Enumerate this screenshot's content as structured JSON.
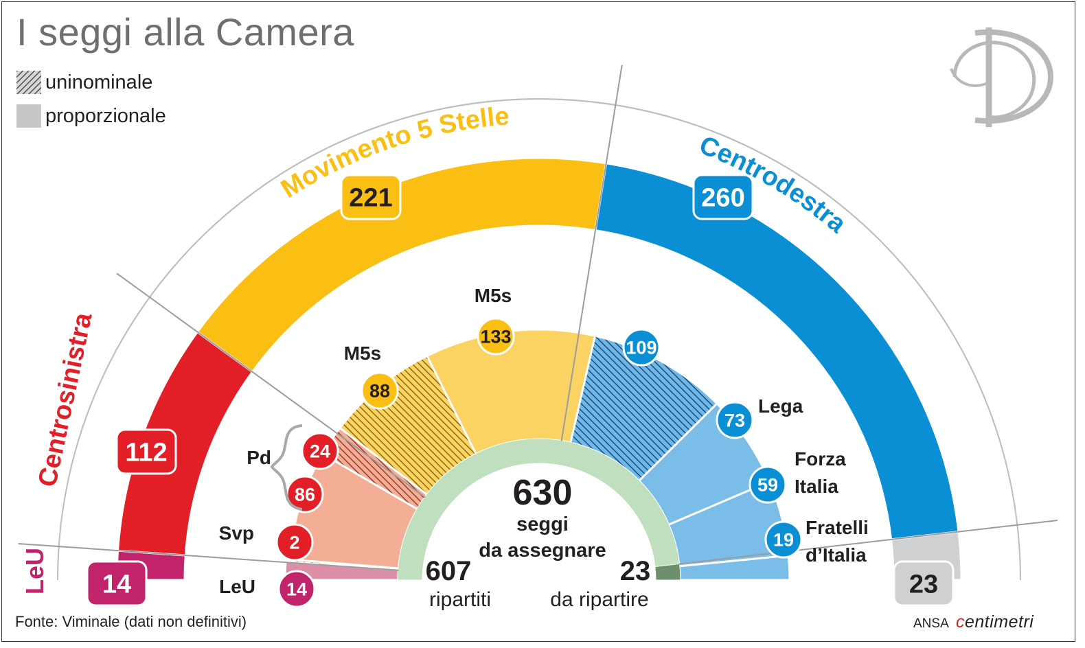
{
  "title": "I seggi alla Camera",
  "legend": [
    {
      "label": "uninominale",
      "pattern": "hatched",
      "color": "#6d6e70"
    },
    {
      "label": "proporzionale",
      "pattern": "solid",
      "color": "#c6c7c8"
    }
  ],
  "source": "Fonte: Viminale (dati non definitivi)",
  "credit": {
    "agency": "ANSA",
    "studio": "centimetri"
  },
  "colors": {
    "red": "#e21f26",
    "yellow": "#fbbf14",
    "blue": "#0a8fd5",
    "leu": "#c1246b",
    "grey": "#cfd0d1",
    "light_yellow": "#fbd363",
    "light_blue": "#79bde8",
    "salmon": "#f4ae95",
    "pink": "#dc8fa6",
    "light_green": "#bfdfbe",
    "dark_green": "#6e8f6c"
  },
  "chart_data": {
    "type": "pie",
    "subtype": "parliament-semicircle",
    "total": {
      "value": "630",
      "label_line1": "seggi",
      "label_line2": "da assegnare"
    },
    "assigned": {
      "value": "607",
      "label": "ripartiti"
    },
    "unassigned": {
      "value": "23",
      "label": "da ripartire"
    },
    "coalitions": [
      {
        "name": "LeU",
        "seats": 14,
        "color": "#c1246b"
      },
      {
        "name": "Centrosinistra",
        "seats": 112,
        "color": "#e21f26"
      },
      {
        "name": "Movimento 5 Stelle",
        "seats": 221,
        "color": "#fbbf14"
      },
      {
        "name": "Centrodestra",
        "seats": 260,
        "color": "#0a8fd5"
      },
      {
        "name": "",
        "seats": 23,
        "color": "#cfd0d1"
      }
    ],
    "parties": [
      {
        "name": "LeU",
        "seats": 14,
        "type": "proporzionale",
        "color": "#dc8fa6",
        "badge": "#c1246b"
      },
      {
        "name": "Svp",
        "seats": 2,
        "type": "uninominale",
        "color": "#f4ae95",
        "badge": "#e21f26"
      },
      {
        "name": "Pd",
        "seats": 86,
        "type": "proporzionale",
        "color": "#f4ae95",
        "badge": "#e21f26"
      },
      {
        "name": "Pd",
        "seats": 24,
        "type": "uninominale",
        "color": "#f4ae95",
        "badge": "#e21f26"
      },
      {
        "name": "M5s",
        "seats": 88,
        "type": "uninominale",
        "color": "#fbd363",
        "badge": "#fbbf14"
      },
      {
        "name": "M5s",
        "seats": 133,
        "type": "proporzionale",
        "color": "#fbd363",
        "badge": "#fbbf14"
      },
      {
        "name": "",
        "seats": 109,
        "type": "uninominale",
        "color": "#79bde8",
        "badge": "#0a8fd5"
      },
      {
        "name": "Lega",
        "seats": 73,
        "type": "proporzionale",
        "color": "#79bde8",
        "badge": "#0a8fd5"
      },
      {
        "name": "Forza Italia",
        "seats": 59,
        "type": "proporzionale",
        "color": "#79bde8",
        "badge": "#0a8fd5"
      },
      {
        "name": "Fratelli d’Italia",
        "seats": 19,
        "type": "proporzionale",
        "color": "#79bde8",
        "badge": "#0a8fd5"
      }
    ]
  }
}
